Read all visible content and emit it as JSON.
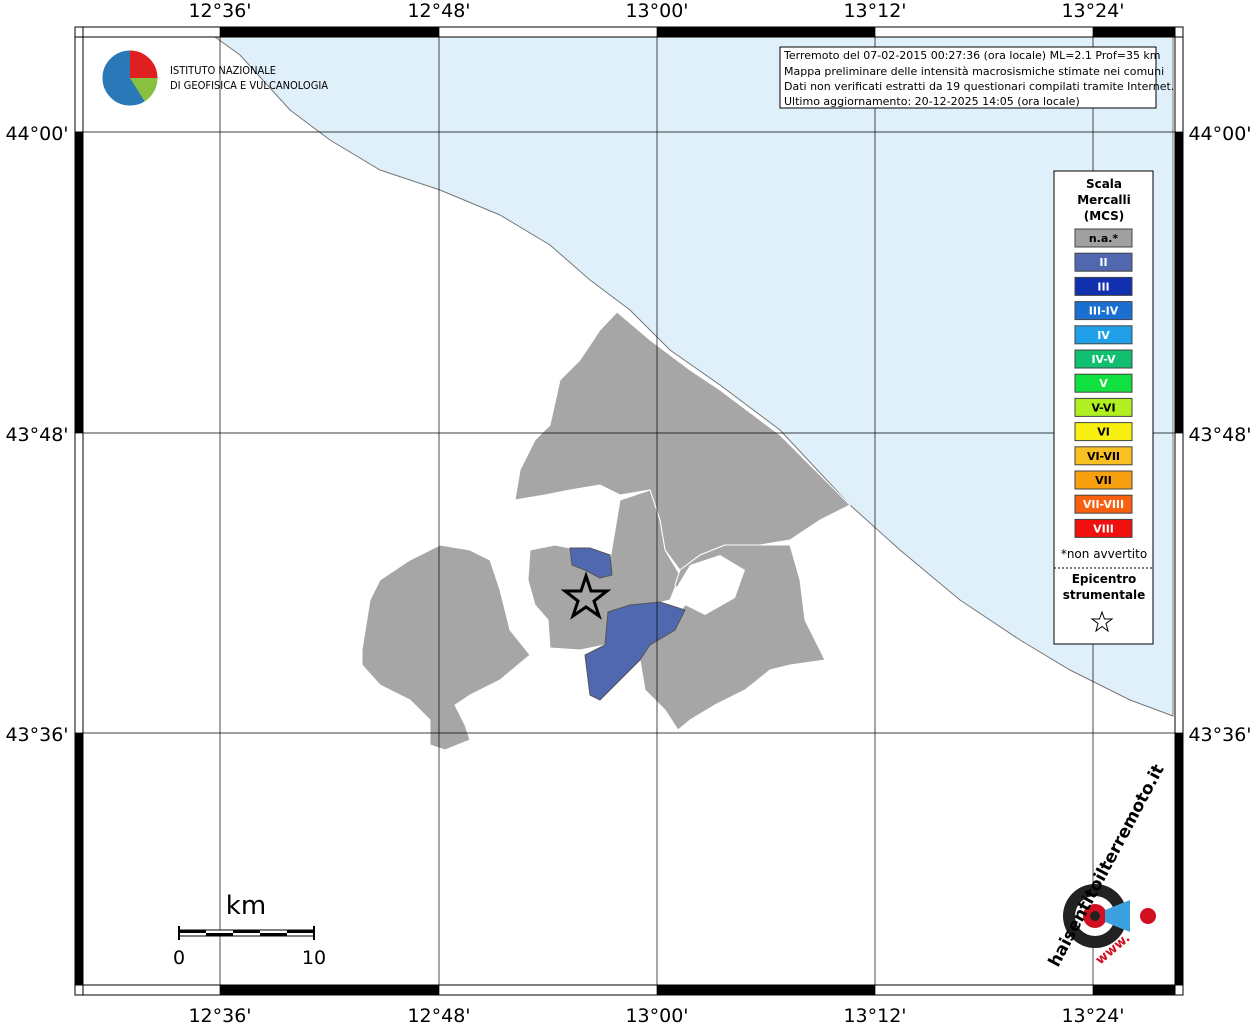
{
  "map": {
    "lon_labels": [
      "12°36'",
      "12°48'",
      "13°00'",
      "13°12'",
      "13°24'"
    ],
    "lat_labels": [
      "44°00'",
      "43°48'",
      "43°36'"
    ]
  },
  "info": [
    "Terremoto del 07-02-2015 00:27:36 (ora locale) ML=2.1 Prof=35 km",
    "Mappa preliminare delle intensità macrosismiche stimate nei comuni",
    "Dati non verificati estratti da 19 questionari compilati tramite Internet.",
    "Ultimo aggiornamento: 20-12-2025 14:05 (ora locale)"
  ],
  "institute": [
    "ISTITUTO NAZIONALE",
    "DI GEOFISICA E VULCANOLOGIA"
  ],
  "legend": {
    "title": [
      "Scala",
      "Mercalli",
      "(MCS)"
    ],
    "items": [
      {
        "label": "n.a.*",
        "color": "#a0a0a0"
      },
      {
        "label": "II",
        "color": "#5068b0"
      },
      {
        "label": "III",
        "color": "#1030b0"
      },
      {
        "label": "III-IV",
        "color": "#1a6fd0"
      },
      {
        "label": "IV",
        "color": "#20a0e8"
      },
      {
        "label": "IV-V",
        "color": "#10c070"
      },
      {
        "label": "V",
        "color": "#10e040"
      },
      {
        "label": "V-VI",
        "color": "#b0f020"
      },
      {
        "label": "VI",
        "color": "#f8f010"
      },
      {
        "label": "VI-VII",
        "color": "#f8c020"
      },
      {
        "label": "VII",
        "color": "#f8a010"
      },
      {
        "label": "VII-VIII",
        "color": "#f86010"
      },
      {
        "label": "VIII",
        "color": "#f01010"
      }
    ],
    "note": "*non avvertito",
    "epicenter": [
      "Epicentro",
      "strumentale"
    ]
  },
  "scale_bar": {
    "unit": "km",
    "labels": [
      "0",
      "10"
    ]
  },
  "site_logo": {
    "text": "haisentitoilterremoto.it",
    "prefix": "www."
  }
}
